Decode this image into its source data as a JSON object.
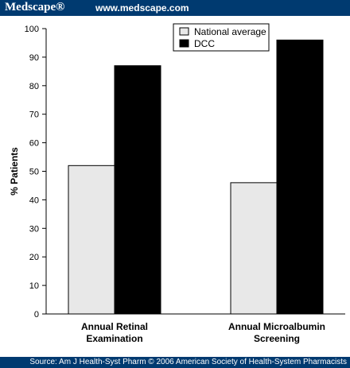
{
  "header": {
    "logo": "Medscape®",
    "url": "www.medscape.com"
  },
  "footer": {
    "source": "Source: Am J Health-Syst Pharm © 2006 American Society of Health-System Pharmacists"
  },
  "chart_data": {
    "type": "bar",
    "categories": [
      [
        "Annual Retinal",
        "Examination"
      ],
      [
        "Annual Microalbumin",
        "Screening"
      ]
    ],
    "series": [
      {
        "name": "National average",
        "values": [
          52,
          46
        ],
        "color": "#e8e8e8"
      },
      {
        "name": "DCC",
        "values": [
          87,
          96
        ],
        "color": "#000000"
      }
    ],
    "ylabel": "% Patients",
    "ylim": [
      0,
      100
    ],
    "yticks": [
      0,
      10,
      20,
      30,
      40,
      50,
      60,
      70,
      80,
      90,
      100
    ],
    "legend_position": "top-right",
    "grid": false
  }
}
